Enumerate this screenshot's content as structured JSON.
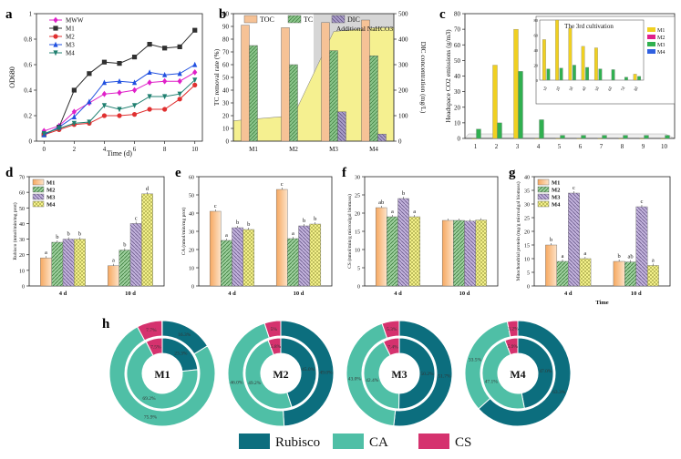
{
  "panels": {
    "a": "a",
    "b": "b",
    "c": "c",
    "d": "d",
    "e": "e",
    "f": "f",
    "g": "g",
    "h": "h"
  },
  "chart_data": [
    {
      "id": "a",
      "type": "line",
      "xlabel": "Time (d)",
      "ylabel": "OD680",
      "xlim": [
        -0.5,
        10.5
      ],
      "ylim": [
        0.0,
        1.0
      ],
      "xticks": [
        0,
        2,
        4,
        6,
        8,
        10
      ],
      "yticks": [
        0.0,
        0.2,
        0.4,
        0.6,
        0.8,
        1.0
      ],
      "legend": "top-left",
      "x": [
        0,
        1,
        2,
        3,
        4,
        5,
        6,
        7,
        8,
        9,
        10
      ],
      "series": [
        {
          "name": "MWW",
          "color": "#e020c8",
          "marker": "diamond",
          "values": [
            0.08,
            0.12,
            0.23,
            0.3,
            0.37,
            0.38,
            0.4,
            0.46,
            0.47,
            0.47,
            0.54
          ]
        },
        {
          "name": "M1",
          "color": "#303030",
          "marker": "square",
          "values": [
            0.05,
            0.11,
            0.4,
            0.53,
            0.62,
            0.61,
            0.66,
            0.76,
            0.73,
            0.74,
            0.87
          ]
        },
        {
          "name": "M2",
          "color": "#e03030",
          "marker": "circle",
          "values": [
            0.05,
            0.09,
            0.13,
            0.14,
            0.2,
            0.2,
            0.21,
            0.25,
            0.25,
            0.33,
            0.44
          ]
        },
        {
          "name": "M3",
          "color": "#2050e0",
          "marker": "triangle",
          "values": [
            0.05,
            0.11,
            0.19,
            0.31,
            0.46,
            0.47,
            0.46,
            0.54,
            0.52,
            0.53,
            0.6
          ]
        },
        {
          "name": "M4",
          "color": "#208070",
          "marker": "triangle-down",
          "values": [
            0.06,
            0.1,
            0.14,
            0.15,
            0.28,
            0.25,
            0.28,
            0.35,
            0.35,
            0.37,
            0.48
          ]
        }
      ]
    },
    {
      "id": "b",
      "type": "bar",
      "categories": [
        "M1",
        "M2",
        "M3",
        "M4"
      ],
      "ylabel": "TC removal rate (%)",
      "y2label": "DIC concentration (mg/L)",
      "ylim": [
        0,
        100
      ],
      "y2lim": [
        0,
        500
      ],
      "yticks": [
        0,
        10,
        20,
        30,
        40,
        50,
        60,
        70,
        80,
        90,
        100
      ],
      "y2ticks": [
        0,
        100,
        200,
        300,
        400,
        500
      ],
      "annotation": "Additional NaHCO3",
      "legend": "top",
      "series": [
        {
          "name": "TOC",
          "color": "#f6c296",
          "values": [
            91,
            89,
            93,
            95
          ]
        },
        {
          "name": "TC",
          "color": "#6aa86a",
          "values": [
            75,
            60,
            71,
            67
          ]
        },
        {
          "name": "DIC",
          "color": "#9a8fb8",
          "axis": "right",
          "values": [
            0,
            0,
            115,
            28
          ]
        }
      ],
      "dic_area_mgL": [
        80,
        100,
        430,
        445
      ]
    },
    {
      "id": "c",
      "type": "bar",
      "xlabel": "",
      "ylabel": "Headspace CO2 emissions (g/m3)",
      "ylim": [
        0,
        80
      ],
      "yticks": [
        0,
        10,
        20,
        30,
        40,
        50,
        60,
        70,
        80
      ],
      "categories": [
        "1",
        "2",
        "3",
        "4",
        "5",
        "6",
        "7",
        "8",
        "9",
        "10"
      ],
      "series": [
        {
          "name": "M1",
          "color": "#f0d020",
          "values": [
            0,
            47,
            70,
            0,
            0,
            0,
            0,
            0,
            0,
            0
          ]
        },
        {
          "name": "M4",
          "color": "#30b050",
          "values": [
            6,
            10,
            43,
            12,
            2,
            2,
            2,
            2,
            2,
            2
          ]
        }
      ],
      "inset": {
        "title": "The 3rd cultivation",
        "ylabel": "Headspace CO2 emissions (g/m3)",
        "yticks": [
          0,
          10,
          20,
          30,
          40,
          50,
          60,
          70,
          80
        ],
        "legend": [
          "M1",
          "M2",
          "M3",
          "M4"
        ],
        "legend_colors": [
          "#f0d020",
          "#e0208a",
          "#30b050",
          "#3060e0"
        ],
        "categories": [
          "1d",
          "2d",
          "3d",
          "4d",
          "5d",
          "6d",
          "7d",
          "8d"
        ],
        "M1": [
          54,
          80,
          69,
          45,
          43,
          0,
          0,
          8
        ],
        "M4": [
          15,
          16,
          20,
          17,
          15,
          14,
          4,
          5
        ]
      }
    },
    {
      "id": "d",
      "type": "bar",
      "categories": [
        "4 d",
        "10 d"
      ],
      "ylabel": "Rubisco (nmol/min/mg prot)",
      "ylim": [
        0,
        70
      ],
      "yticks": [
        0,
        10,
        20,
        30,
        40,
        50,
        60,
        70
      ],
      "legend": "top-left",
      "series": [
        {
          "name": "M1",
          "values": [
            18,
            13
          ],
          "letters": [
            "a",
            "a"
          ]
        },
        {
          "name": "M2",
          "values": [
            28,
            23
          ],
          "letters": [
            "b",
            "b"
          ]
        },
        {
          "name": "M3",
          "values": [
            30,
            40
          ],
          "letters": [
            "b",
            "c"
          ]
        },
        {
          "name": "M4",
          "values": [
            30,
            59
          ],
          "letters": [
            "b",
            "d"
          ]
        }
      ]
    },
    {
      "id": "e",
      "type": "bar",
      "categories": [
        "4 d",
        "10 d"
      ],
      "ylabel": "CA (nmol/min/mg prot)",
      "ylim": [
        0,
        60
      ],
      "yticks": [
        0,
        10,
        20,
        30,
        40,
        50,
        60
      ],
      "series": [
        {
          "name": "M1",
          "values": [
            41,
            53
          ],
          "letters": [
            "c",
            "c"
          ]
        },
        {
          "name": "M2",
          "values": [
            25,
            26
          ],
          "letters": [
            "a",
            "a"
          ]
        },
        {
          "name": "M3",
          "values": [
            32,
            33
          ],
          "letters": [
            "b",
            "b"
          ]
        },
        {
          "name": "M4",
          "values": [
            31,
            34
          ],
          "letters": [
            "b",
            "b"
          ]
        }
      ]
    },
    {
      "id": "f",
      "type": "bar",
      "categories": [
        "4 d",
        "10 d"
      ],
      "ylabel": "CS (nmol/min/g microalgal biomass)",
      "ylim": [
        0,
        30
      ],
      "yticks": [
        0,
        5,
        10,
        15,
        20,
        25,
        30
      ],
      "series": [
        {
          "name": "M1",
          "values": [
            21.5,
            18.0
          ],
          "letters": [
            "ab",
            ""
          ]
        },
        {
          "name": "M2",
          "values": [
            19.0,
            18.0
          ],
          "letters": [
            "a",
            ""
          ]
        },
        {
          "name": "M3",
          "values": [
            24.0,
            17.8
          ],
          "letters": [
            "b",
            ""
          ]
        },
        {
          "name": "M4",
          "values": [
            19.0,
            18.1
          ],
          "letters": [
            "a",
            ""
          ]
        }
      ]
    },
    {
      "id": "g",
      "type": "bar",
      "categories": [
        "4 d",
        "10 d"
      ],
      "xlabel": "Time",
      "ylabel": "Mitochondrial protein (mg/g microalgal biomass)",
      "ylim": [
        0,
        40
      ],
      "yticks": [
        0,
        5,
        10,
        15,
        20,
        25,
        30,
        35,
        40
      ],
      "legend": "top-left",
      "series": [
        {
          "name": "M1",
          "values": [
            15,
            9
          ],
          "letters": [
            "b",
            "b"
          ]
        },
        {
          "name": "M2",
          "values": [
            9,
            8.8
          ],
          "letters": [
            "a",
            "ab"
          ]
        },
        {
          "name": "M3",
          "values": [
            34,
            29
          ],
          "letters": [
            "c",
            "c"
          ]
        },
        {
          "name": "M4",
          "values": [
            10,
            7.5
          ],
          "letters": [
            "a",
            "a"
          ]
        }
      ]
    },
    {
      "id": "h",
      "type": "pie",
      "legend": "bottom",
      "categories": [
        "Rubisco",
        "CA",
        "CS"
      ],
      "colors": [
        "#0c6e7e",
        "#4fbfa6",
        "#d5326e"
      ],
      "donuts": [
        {
          "label": "M1",
          "outer": [
            16.3,
            75.9,
            7.7
          ],
          "inner": [
            23.3,
            69.2,
            7.5
          ],
          "outer_text": [
            "16.3%",
            "75.9%",
            "7.7%"
          ],
          "inner_text": [
            "23.3%",
            "69.2%",
            "7.5%"
          ]
        },
        {
          "label": "M2",
          "outer": [
            49.0,
            46.0,
            5.0
          ],
          "inner": [
            45.0,
            49.2,
            5.8
          ],
          "outer_text": [
            "49.0%",
            "46.0%",
            "5%"
          ],
          "inner_text": [
            "45.0%",
            "49.2%",
            "5.8%"
          ]
        },
        {
          "label": "M3",
          "outer": [
            51.7,
            43.0,
            5.3
          ],
          "inner": [
            50.2,
            42.4,
            7.4
          ],
          "outer_text": [
            "51.7%",
            "43.0%",
            "5.3%"
          ],
          "inner_text": [
            "50.2%",
            "42.4%",
            "7.4%"
          ]
        },
        {
          "label": "M4",
          "outer": [
            63.3,
            33.5,
            3.2
          ],
          "inner": [
            47.0,
            47.1,
            5.9
          ],
          "outer_text": [
            "63.3%",
            "33.5%",
            "3.2%"
          ],
          "inner_text": [
            "47.0%",
            "47.1%",
            "5.9%"
          ]
        }
      ]
    }
  ]
}
